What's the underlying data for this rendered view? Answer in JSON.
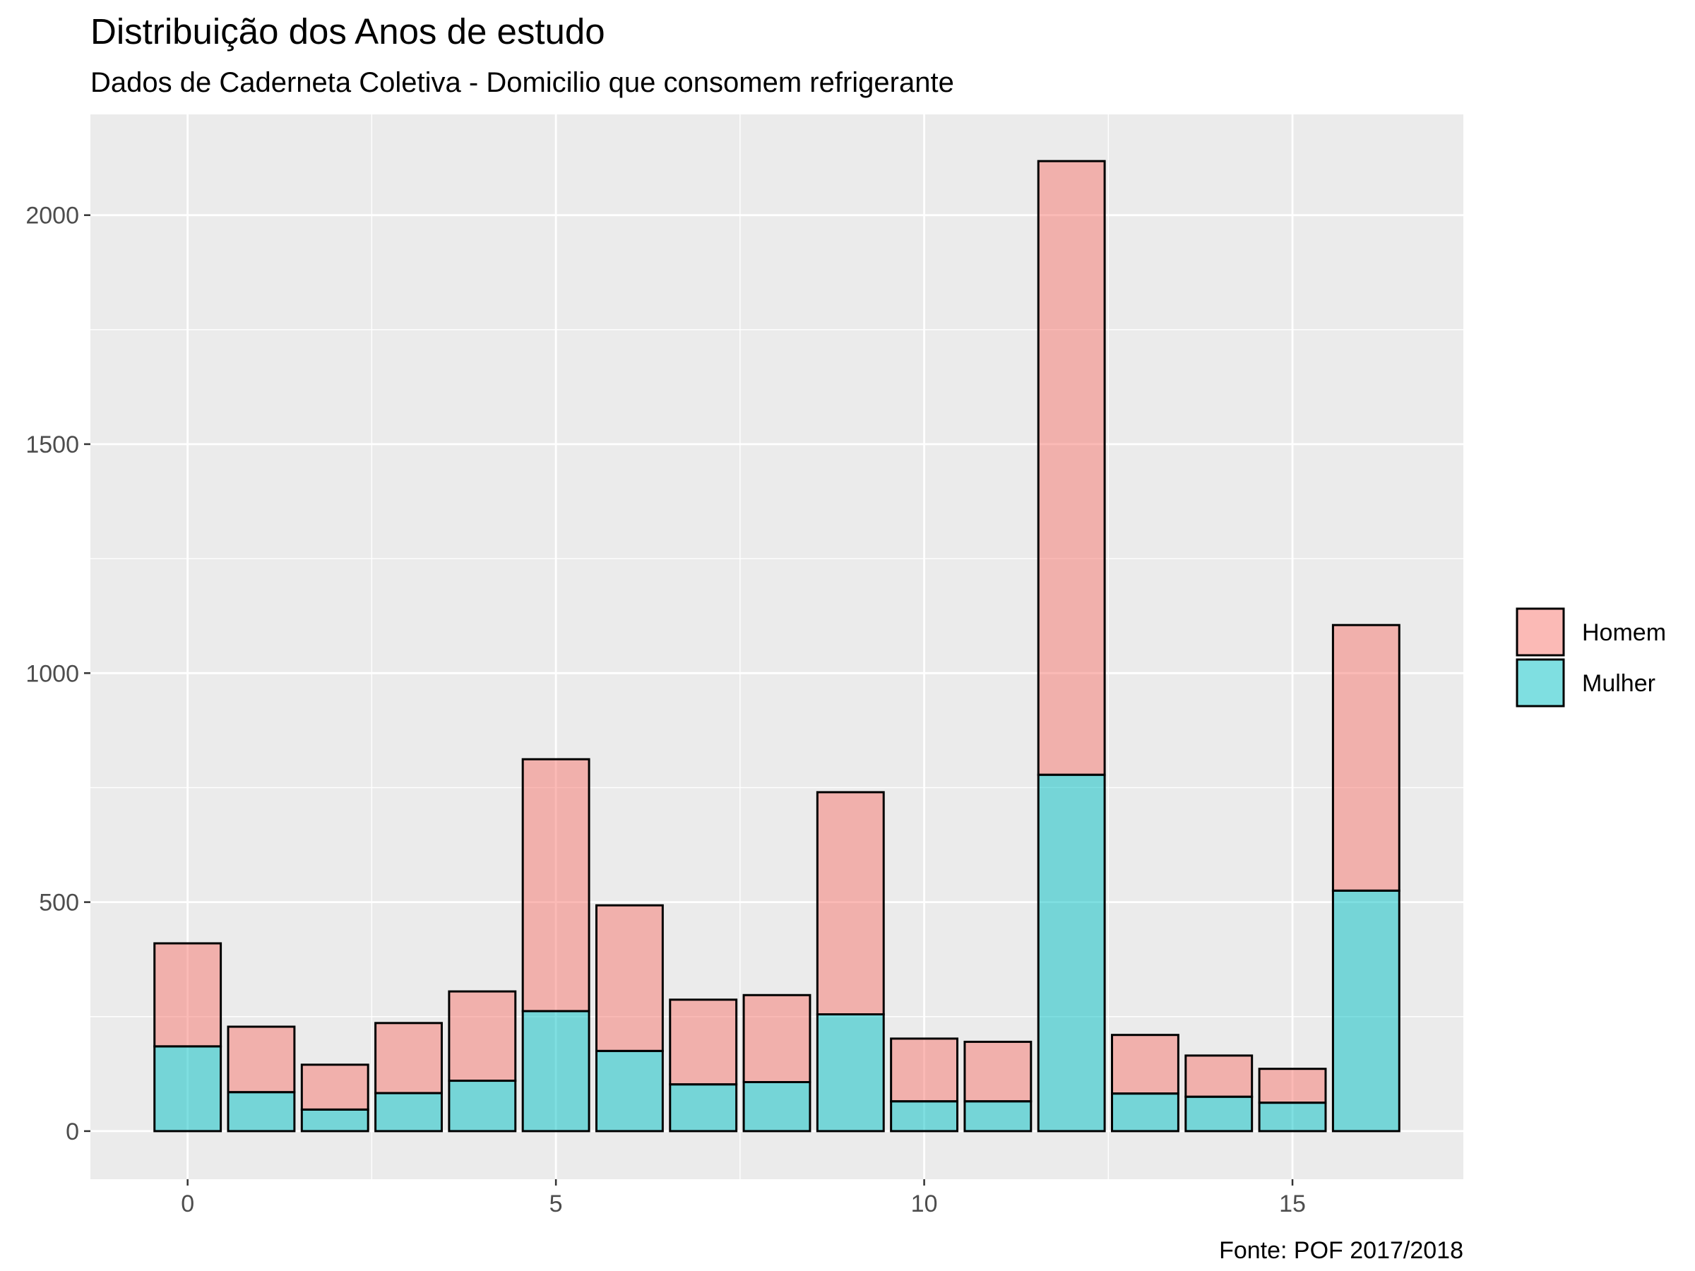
{
  "chart_data": {
    "type": "bar",
    "stacked": true,
    "title": "Distribuição dos Anos de estudo",
    "subtitle": "Dados de Caderneta Coletiva - Domicilio que consomem refrigerante",
    "caption": "Fonte: POF 2017/2018",
    "xlabel": "",
    "ylabel": "",
    "x": [
      0,
      1,
      2,
      3,
      4,
      5,
      6,
      7,
      8,
      9,
      10,
      11,
      12,
      13,
      14,
      15,
      16
    ],
    "series": [
      {
        "name": "Mulher",
        "color": "#00BFC4",
        "values": [
          185,
          85,
          47,
          83,
          110,
          262,
          175,
          102,
          107,
          255,
          65,
          65,
          778,
          82,
          75,
          62,
          525
        ]
      },
      {
        "name": "Homem",
        "color": "#F8766D",
        "values": [
          225,
          143,
          98,
          153,
          195,
          550,
          318,
          185,
          190,
          485,
          137,
          130,
          1340,
          128,
          90,
          74,
          580
        ]
      }
    ],
    "xlim": [
      -1.32,
      17.32
    ],
    "ylim": [
      -105,
      2220
    ],
    "x_ticks": [
      0,
      5,
      10,
      15
    ],
    "x_tick_labels": [
      "0",
      "5",
      "10",
      "15"
    ],
    "y_ticks": [
      0,
      500,
      1000,
      1500,
      2000
    ],
    "y_tick_labels": [
      "0",
      "500",
      "1000",
      "1500",
      "2000"
    ],
    "grid": true,
    "legend": {
      "position": "right",
      "entries": [
        "Homem",
        "Mulher"
      ]
    },
    "colors": {
      "panel_background": "#EBEBEB",
      "grid": "#FFFFFF",
      "bar_outline": "#000000"
    }
  }
}
